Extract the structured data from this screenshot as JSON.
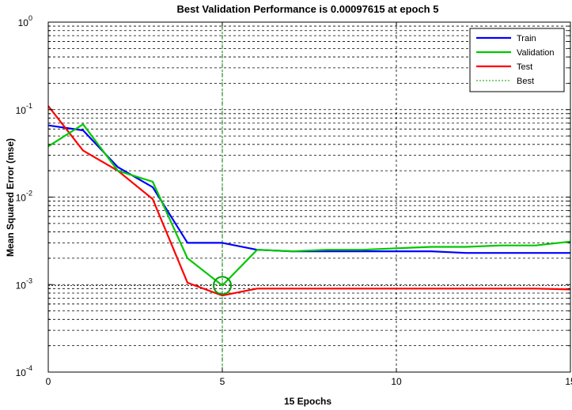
{
  "chart_data": {
    "type": "line",
    "title": "Best Validation Performance is 0.00097615 at epoch 5",
    "xlabel": "15 Epochs",
    "ylabel": "Mean Squared Error  (mse)",
    "xlim": [
      0,
      15
    ],
    "ylim": [
      0.0001,
      1
    ],
    "yscale": "log",
    "grid": true,
    "legend_position": "top-right",
    "x_ticks": [
      0,
      5,
      10,
      15
    ],
    "y_ticks": [
      {
        "base": "10",
        "exp": "0"
      },
      {
        "base": "10",
        "exp": "-1"
      },
      {
        "base": "10",
        "exp": "-2"
      },
      {
        "base": "10",
        "exp": "-3"
      },
      {
        "base": "10",
        "exp": "-4"
      }
    ],
    "y_tick_values": [
      1,
      0.1,
      0.01,
      0.001,
      0.0001
    ],
    "series": [
      {
        "name": "Train",
        "color": "#0000ff",
        "style": "solid",
        "x": [
          0,
          1,
          2,
          3,
          4,
          5,
          6,
          7,
          8,
          9,
          10,
          11,
          12,
          13,
          14,
          15
        ],
        "y": [
          0.066,
          0.058,
          0.022,
          0.013,
          0.003,
          0.003,
          0.0025,
          0.0024,
          0.0024,
          0.0024,
          0.0024,
          0.0024,
          0.0023,
          0.0023,
          0.0023,
          0.0023
        ]
      },
      {
        "name": "Validation",
        "color": "#00c800",
        "style": "solid",
        "x": [
          0,
          1,
          2,
          3,
          4,
          5,
          6,
          7,
          8,
          9,
          10,
          11,
          12,
          13,
          14,
          15
        ],
        "y": [
          0.038,
          0.068,
          0.02,
          0.015,
          0.002,
          0.00097615,
          0.0025,
          0.0024,
          0.0025,
          0.0025,
          0.0026,
          0.0027,
          0.0027,
          0.0028,
          0.0028,
          0.0031
        ]
      },
      {
        "name": "Test",
        "color": "#ff0000",
        "style": "solid",
        "x": [
          0,
          1,
          2,
          3,
          4,
          5,
          6,
          7,
          8,
          9,
          10,
          11,
          12,
          13,
          14,
          15
        ],
        "y": [
          0.11,
          0.034,
          0.02,
          0.0095,
          0.00105,
          0.00075,
          0.0009,
          0.0009,
          0.0009,
          0.0009,
          0.0009,
          0.0009,
          0.0009,
          0.0009,
          0.0009,
          0.00088
        ]
      }
    ],
    "best": {
      "name": "Best",
      "color": "#00a000",
      "epoch": 5,
      "value": 0.00097615
    },
    "best_hline_color": "#000000",
    "best_vline_color": "#00a000"
  }
}
